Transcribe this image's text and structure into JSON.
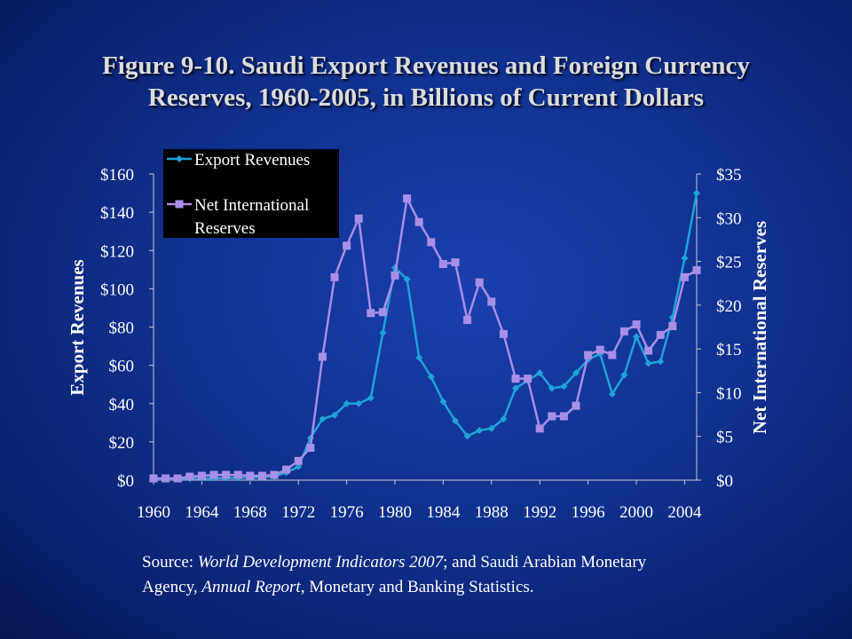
{
  "title_line1": "Figure 9-10. Saudi Export Revenues and Foreign Currency",
  "title_line2": "Reserves, 1960-2005, in Billions of Current Dollars",
  "source": {
    "prefix": "Source: ",
    "italic1": "World Development Indicators 2007",
    "mid": "; and Saudi Arabian Monetary",
    "line2_prefix": "Agency, ",
    "italic2": "Annual Report",
    "suffix": ", Monetary and Banking Statistics."
  },
  "colors": {
    "background": "#10318f",
    "export_series": "#1fa3d8",
    "reserves_series": "#a88ee6",
    "axis": "#c8c8c8",
    "legend_bg": "#000000"
  },
  "chart_data": {
    "type": "line",
    "grid": false,
    "legend_position": "top-left",
    "xlabel": "",
    "ylabel_left": "Export Revenues",
    "ylabel_right": "Net International Reserves",
    "xlim": [
      1960,
      2005
    ],
    "ylim_left": [
      0,
      160
    ],
    "ylim_right": [
      0,
      35
    ],
    "x_tick_labels": [
      "1960",
      "1964",
      "1968",
      "1972",
      "1976",
      "1980",
      "1984",
      "1988",
      "1992",
      "1996",
      "2000",
      "2004"
    ],
    "y_left_tick_labels": [
      "$0",
      "$20",
      "$40",
      "$60",
      "$80",
      "$100",
      "$120",
      "$140",
      "$160"
    ],
    "y_right_tick_labels": [
      "$0",
      "$5",
      "$10",
      "$15",
      "$20",
      "$25",
      "$30",
      "$35"
    ],
    "x": [
      1960,
      1961,
      1962,
      1963,
      1964,
      1965,
      1966,
      1967,
      1968,
      1969,
      1970,
      1971,
      1972,
      1973,
      1974,
      1975,
      1976,
      1977,
      1978,
      1979,
      1980,
      1981,
      1982,
      1983,
      1984,
      1985,
      1986,
      1987,
      1988,
      1989,
      1990,
      1991,
      1992,
      1993,
      1994,
      1995,
      1996,
      1997,
      1998,
      1999,
      2000,
      2001,
      2002,
      2003,
      2004,
      2005
    ],
    "series": [
      {
        "name": "Export Revenues",
        "axis": "left",
        "marker": "diamond",
        "values": [
          0.5,
          0.6,
          0.7,
          0.8,
          0.9,
          1.0,
          1.1,
          1.2,
          1.3,
          1.4,
          2.0,
          4.0,
          7.0,
          22.0,
          32.0,
          34.0,
          40.0,
          40.0,
          43.0,
          77.0,
          111.0,
          105.0,
          64.0,
          54.0,
          41.0,
          31.0,
          23.0,
          26.0,
          27.0,
          32.0,
          48.0,
          52.0,
          56.0,
          48.0,
          49.0,
          56.0,
          63.0,
          66.0,
          45.0,
          55.0,
          75.0,
          61.0,
          62.0,
          85.0,
          116.0,
          150.0
        ]
      },
      {
        "name": "Net International Reserves",
        "axis": "right",
        "marker": "square",
        "values": [
          0.2,
          0.2,
          0.2,
          0.4,
          0.5,
          0.6,
          0.6,
          0.6,
          0.5,
          0.5,
          0.6,
          1.2,
          2.2,
          3.7,
          14.1,
          23.2,
          26.8,
          29.9,
          19.1,
          19.2,
          23.4,
          32.2,
          29.5,
          27.2,
          24.7,
          24.9,
          18.3,
          22.6,
          20.4,
          16.7,
          11.6,
          11.6,
          5.9,
          7.3,
          7.3,
          8.5,
          14.3,
          14.9,
          14.3,
          17.0,
          17.8,
          14.8,
          16.6,
          17.6,
          23.2,
          24.0
        ]
      }
    ]
  }
}
